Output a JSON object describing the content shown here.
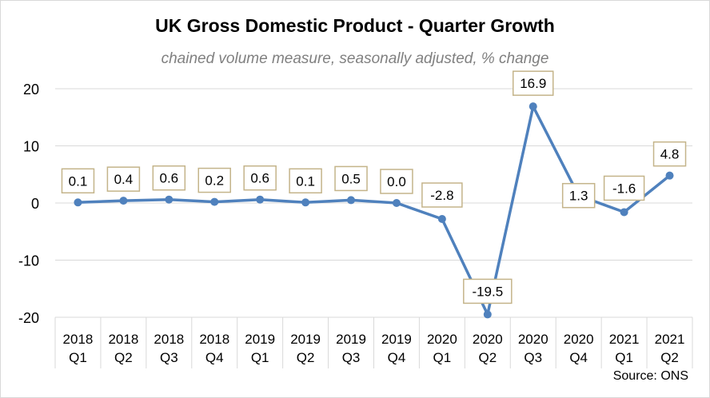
{
  "chart_data": {
    "type": "line",
    "title": "UK Gross Domestic Product - Quarter Growth",
    "subtitle": "chained volume measure, seasonally adjusted, % change",
    "source": "Source: ONS",
    "categories": [
      [
        "2018",
        "Q1"
      ],
      [
        "2018",
        "Q2"
      ],
      [
        "2018",
        "Q3"
      ],
      [
        "2018",
        "Q4"
      ],
      [
        "2019",
        "Q1"
      ],
      [
        "2019",
        "Q2"
      ],
      [
        "2019",
        "Q3"
      ],
      [
        "2019",
        "Q4"
      ],
      [
        "2020",
        "Q1"
      ],
      [
        "2020",
        "Q2"
      ],
      [
        "2020",
        "Q3"
      ],
      [
        "2020",
        "Q4"
      ],
      [
        "2021",
        "Q1"
      ],
      [
        "2021",
        "Q2"
      ]
    ],
    "values": [
      0.1,
      0.4,
      0.6,
      0.2,
      0.6,
      0.1,
      0.5,
      0.0,
      -2.8,
      -19.5,
      16.9,
      1.3,
      -1.6,
      4.8
    ],
    "data_labels": [
      "0.1",
      "0.4",
      "0.6",
      "0.2",
      "0.6",
      "0.1",
      "0.5",
      "0.0",
      "-2.8",
      "-19.5",
      "16.9",
      "1.3",
      "-1.6",
      "4.8"
    ],
    "ylim": [
      -20,
      20
    ],
    "yticks": [
      20,
      10,
      0,
      -10,
      -20
    ],
    "grid": true,
    "legend": false,
    "colors": {
      "line": "#4f81bd",
      "grid": "#d9d9d9",
      "label_border": "#c4b48a"
    }
  }
}
